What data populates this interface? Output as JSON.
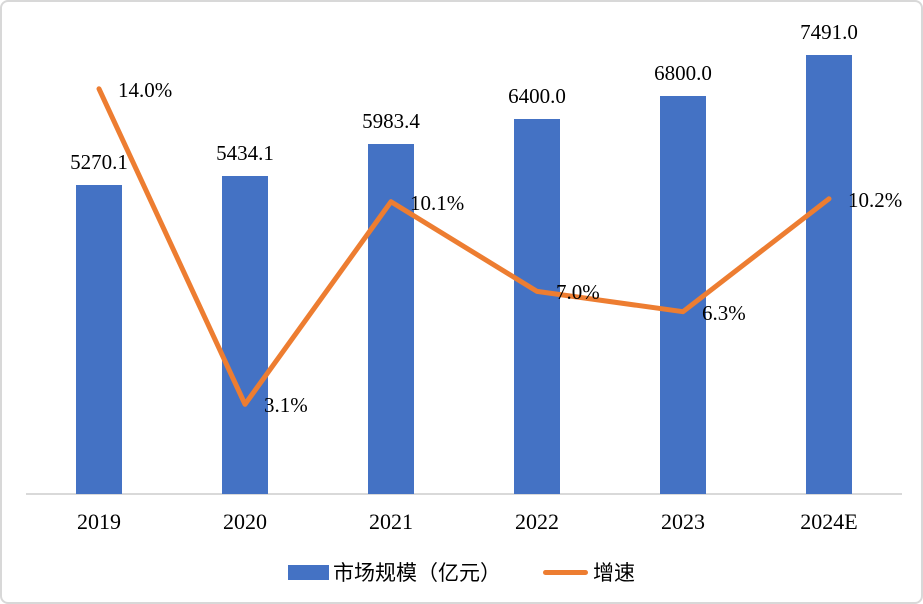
{
  "chart_data": {
    "type": "combo",
    "categories": [
      "2019",
      "2020",
      "2021",
      "2022",
      "2023",
      "2024E"
    ],
    "series": [
      {
        "name": "市场规模（亿元）",
        "type": "bar",
        "axis": "left",
        "color": "#4472C4",
        "values": [
          5270.1,
          5434.1,
          5983.4,
          6400.0,
          6800.0,
          7491.0
        ],
        "labels": [
          "5270.1",
          "5434.1",
          "5983.4",
          "6400.0",
          "6800.0",
          "7491.0"
        ]
      },
      {
        "name": "增速",
        "type": "line",
        "axis": "right",
        "color": "#ED7D31",
        "values": [
          14.0,
          3.1,
          10.1,
          7.0,
          6.3,
          10.2
        ],
        "labels": [
          "14.0%",
          "3.1%",
          "10.1%",
          "7.0%",
          "6.3%",
          "10.2%"
        ]
      }
    ],
    "left_axis": {
      "min": 0,
      "max": 8400,
      "tick_labels_visible": false
    },
    "right_axis": {
      "min": 0,
      "max": 17,
      "unit": "%",
      "tick_labels_visible": false
    },
    "title": "",
    "grid": false,
    "legend_position": "bottom",
    "axis_line_color": "#D9D9D9",
    "text_color": "#000000",
    "background_color": "#FFFFFF"
  }
}
